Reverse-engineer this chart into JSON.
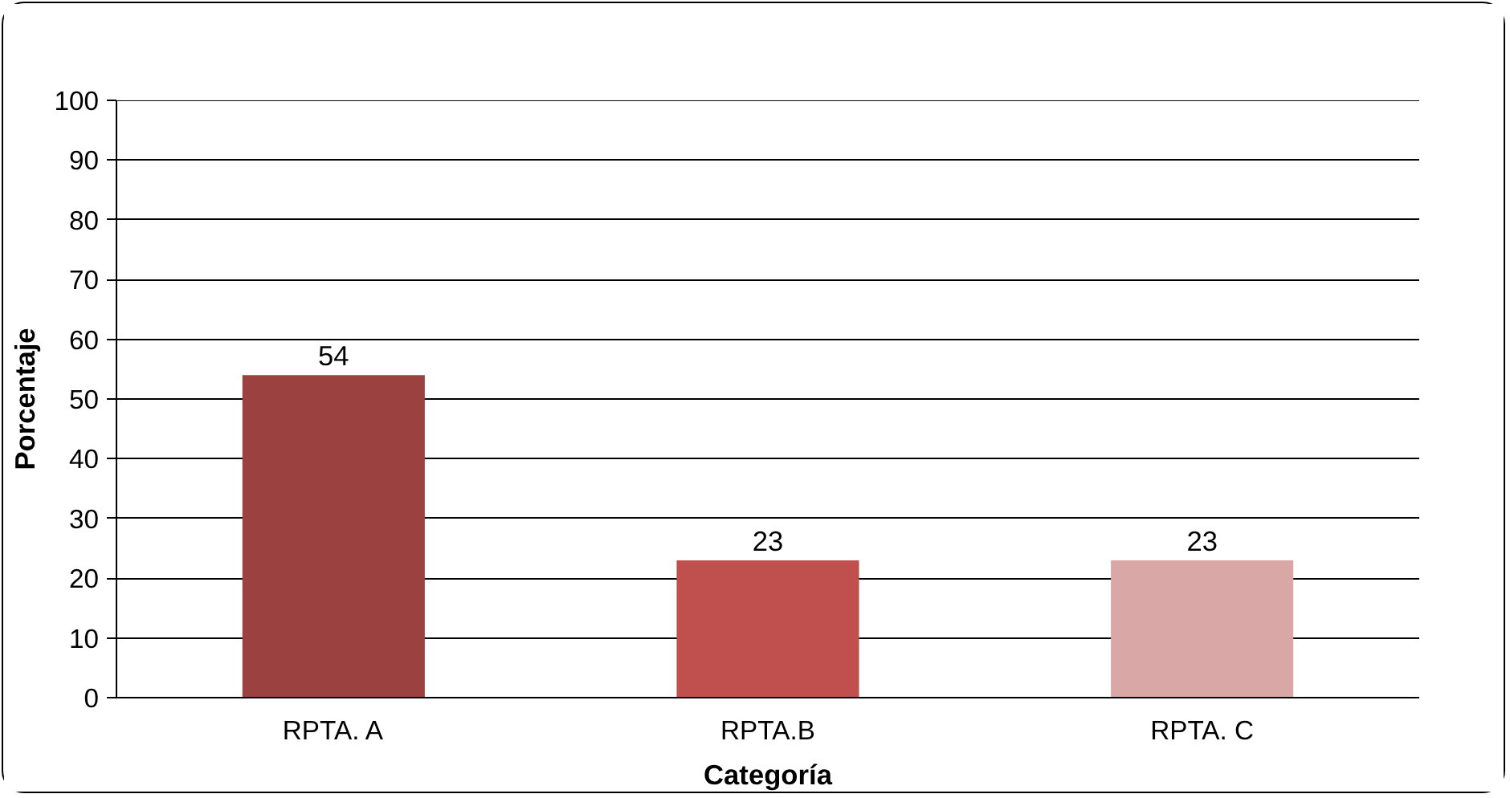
{
  "chart_data": {
    "type": "bar",
    "xlabel": "Categoría",
    "ylabel": "Porcentaje",
    "categories": [
      "RPTA. A",
      "RPTA.B",
      "RPTA. C"
    ],
    "values": [
      54,
      23,
      23
    ],
    "colors": [
      "#9b4240",
      "#c0504d",
      "#d9a7a6"
    ],
    "ylim": [
      0,
      100
    ],
    "yticks": [
      0,
      10,
      20,
      30,
      40,
      50,
      60,
      70,
      80,
      90,
      100
    ],
    "grid": "y",
    "data_labels": true
  }
}
